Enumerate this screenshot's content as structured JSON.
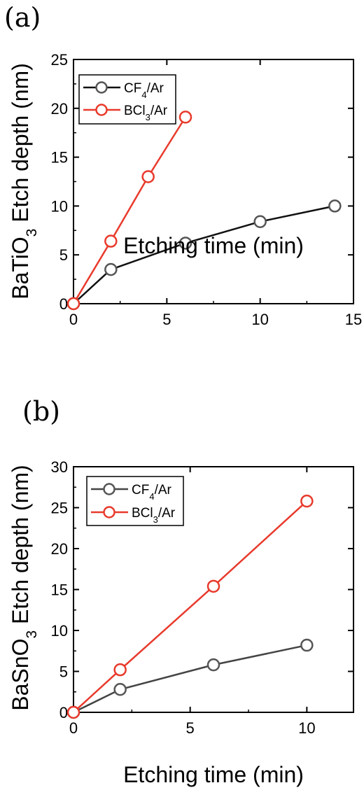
{
  "chart_data": [
    {
      "type": "line",
      "panel_label": "(a)",
      "xlabel": "Etching time (min)",
      "ylabel": "BaTiO",
      "ylabel_sub": "3",
      "ylabel_rest": " Etch depth (nm)",
      "xlim": [
        0,
        15
      ],
      "ylim": [
        0,
        25
      ],
      "xticks": [
        0,
        5,
        10,
        15
      ],
      "yticks": [
        0,
        5,
        10,
        15,
        20,
        25
      ],
      "grid": false,
      "legend_position": "top-left",
      "series": [
        {
          "name": "CF",
          "name_sub": "4",
          "name_rest": "/Ar",
          "color": "#111111",
          "marker_color": "#555555",
          "x": [
            0,
            2,
            6,
            10,
            14
          ],
          "y": [
            0,
            3.5,
            6.2,
            8.4,
            10.0
          ]
        },
        {
          "name": "BCl",
          "name_sub": "3",
          "name_rest": "/Ar",
          "color": "#e83a2c",
          "marker_color": "#e83a2c",
          "x": [
            0,
            2,
            4,
            6
          ],
          "y": [
            0,
            6.4,
            13.0,
            19.1
          ]
        }
      ]
    },
    {
      "type": "line",
      "panel_label": "(b)",
      "xlabel": "Etching time (min)",
      "ylabel": "BaSnO",
      "ylabel_sub": "3",
      "ylabel_rest": " Etch depth (nm)",
      "xlim": [
        0,
        12
      ],
      "ylim": [
        0,
        30
      ],
      "xticks": [
        0,
        5,
        10
      ],
      "yticks": [
        0,
        5,
        10,
        15,
        20,
        25,
        30
      ],
      "grid": false,
      "legend_position": "top-left",
      "series": [
        {
          "name": "CF",
          "name_sub": "4",
          "name_rest": "/Ar",
          "color": "#444444",
          "marker_color": "#555555",
          "x": [
            0,
            2,
            6,
            10
          ],
          "y": [
            0,
            2.8,
            5.8,
            8.2
          ]
        },
        {
          "name": "BCl",
          "name_sub": "3",
          "name_rest": "/Ar",
          "color": "#e83a2c",
          "marker_color": "#e83a2c",
          "x": [
            0,
            2,
            6,
            10
          ],
          "y": [
            0,
            5.2,
            15.4,
            25.8
          ]
        }
      ]
    }
  ]
}
